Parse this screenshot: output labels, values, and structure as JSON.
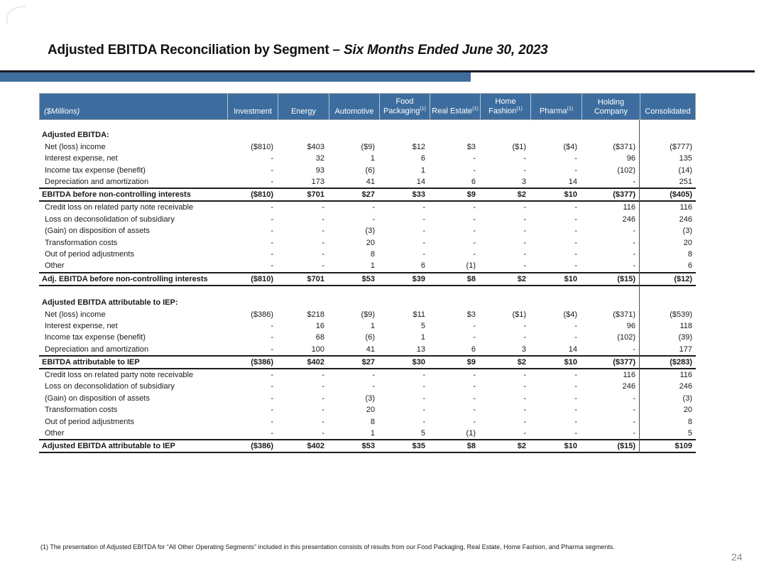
{
  "slide": {
    "title_main": "Adjusted EBITDA Reconciliation by Segment – ",
    "title_italic": "Six Months Ended June 30, 2023",
    "footnote": "(1) The presentation of Adjusted EBITDA for “All Other Operating Segments” included in this presentation consists of results from our Food Packaging, Real Estate, Home Fashion, and Pharma segments.",
    "page_number": "24"
  },
  "colors": {
    "header_blue": "#3D6D9E",
    "accent_bar": "#3E6D9E",
    "rule_dark": "#1A1A24",
    "page_number": "#8A8A8A"
  },
  "table": {
    "unit_label": "($Millions)",
    "columns": [
      {
        "label": "Investment",
        "sup": ""
      },
      {
        "label": "Energy",
        "sup": ""
      },
      {
        "label": "Automotive",
        "sup": ""
      },
      {
        "label": "Food Packaging",
        "sup": "(1)"
      },
      {
        "label": "Real Estate",
        "sup": "(1)"
      },
      {
        "label": "Home Fashion",
        "sup": "(1)"
      },
      {
        "label": "Pharma",
        "sup": "(1)"
      },
      {
        "label": "Holding Company",
        "sup": ""
      },
      {
        "label": "Consolidated",
        "sup": ""
      }
    ],
    "sections": [
      {
        "header": "Adjusted EBITDA:",
        "rows": [
          {
            "label": "Net (loss) income",
            "style": "normal",
            "values": [
              "($810)",
              "$403",
              "($9)",
              "$12",
              "$3",
              "($1)",
              "($4)",
              "($371)",
              "($777)"
            ]
          },
          {
            "label": "Interest expense, net",
            "style": "normal",
            "values": [
              "-",
              "32",
              "1",
              "6",
              "-",
              "-",
              "-",
              "96",
              "135"
            ]
          },
          {
            "label": "Income tax expense (benefit)",
            "style": "normal",
            "values": [
              "-",
              "93",
              "(6)",
              "1",
              "-",
              "-",
              "-",
              "(102)",
              "(14)"
            ]
          },
          {
            "label": "Depreciation and amortization",
            "style": "normal",
            "values": [
              "-",
              "173",
              "41",
              "14",
              "6",
              "3",
              "14",
              "-",
              "251"
            ]
          },
          {
            "label": "EBITDA before non-controlling interests",
            "style": "total",
            "values": [
              "($810)",
              "$701",
              "$27",
              "$33",
              "$9",
              "$2",
              "$10",
              "($377)",
              "($405)"
            ]
          },
          {
            "label": "Credit loss on related party note receivable",
            "style": "normal",
            "values": [
              "-",
              "-",
              "-",
              "-",
              "-",
              "-",
              "-",
              "116",
              "116"
            ]
          },
          {
            "label": "Loss on deconsolidation of subsidiary",
            "style": "normal",
            "values": [
              "-",
              "-",
              "-",
              "-",
              "-",
              "-",
              "-",
              "246",
              "246"
            ]
          },
          {
            "label": "(Gain) on disposition of assets",
            "style": "normal",
            "values": [
              "-",
              "-",
              "(3)",
              "-",
              "-",
              "-",
              "-",
              "-",
              "(3)"
            ]
          },
          {
            "label": "Transformation costs",
            "style": "normal",
            "values": [
              "-",
              "-",
              "20",
              "-",
              "-",
              "-",
              "-",
              "-",
              "20"
            ]
          },
          {
            "label": "Out of period adjustments",
            "style": "normal",
            "values": [
              "-",
              "-",
              "8",
              "-",
              "-",
              "-",
              "-",
              "-",
              "8"
            ]
          },
          {
            "label": "Other",
            "style": "normal",
            "values": [
              "-",
              "-",
              "1",
              "6",
              "(1)",
              "-",
              "-",
              "-",
              "6"
            ]
          },
          {
            "label": "Adj. EBITDA before non-controlling interests",
            "style": "total",
            "values": [
              "($810)",
              "$701",
              "$53",
              "$39",
              "$8",
              "$2",
              "$10",
              "($15)",
              "($12)"
            ]
          }
        ]
      },
      {
        "header": "Adjusted EBITDA attributable to IEP:",
        "rows": [
          {
            "label": "Net (loss) income",
            "style": "normal",
            "values": [
              "($386)",
              "$218",
              "($9)",
              "$11",
              "$3",
              "($1)",
              "($4)",
              "($371)",
              "($539)"
            ]
          },
          {
            "label": "Interest expense, net",
            "style": "normal",
            "values": [
              "-",
              "16",
              "1",
              "5",
              "-",
              "-",
              "-",
              "96",
              "118"
            ]
          },
          {
            "label": "Income tax expense (benefit)",
            "style": "normal",
            "values": [
              "-",
              "68",
              "(6)",
              "1",
              "-",
              "-",
              "-",
              "(102)",
              "(39)"
            ]
          },
          {
            "label": "Depreciation and amortization",
            "style": "normal",
            "values": [
              "-",
              "100",
              "41",
              "13",
              "6",
              "3",
              "14",
              "-",
              "177"
            ]
          },
          {
            "label": "EBITDA attributable to IEP",
            "style": "total",
            "values": [
              "($386)",
              "$402",
              "$27",
              "$30",
              "$9",
              "$2",
              "$10",
              "($377)",
              "($283)"
            ]
          },
          {
            "label": "Credit loss on related party note receivable",
            "style": "normal",
            "values": [
              "-",
              "-",
              "-",
              "-",
              "-",
              "-",
              "-",
              "116",
              "116"
            ]
          },
          {
            "label": "Loss on deconsolidation of subsidiary",
            "style": "normal",
            "values": [
              "-",
              "-",
              "-",
              "-",
              "-",
              "-",
              "-",
              "246",
              "246"
            ]
          },
          {
            "label": "(Gain) on disposition of assets",
            "style": "normal",
            "values": [
              "-",
              "-",
              "(3)",
              "-",
              "-",
              "-",
              "-",
              "-",
              "(3)"
            ]
          },
          {
            "label": "Transformation costs",
            "style": "normal",
            "values": [
              "-",
              "-",
              "20",
              "-",
              "-",
              "-",
              "-",
              "-",
              "20"
            ]
          },
          {
            "label": "Out of period adjustments",
            "style": "normal",
            "values": [
              "-",
              "-",
              "8",
              "-",
              "-",
              "-",
              "-",
              "-",
              "8"
            ]
          },
          {
            "label": "Other",
            "style": "normal",
            "values": [
              "-",
              "-",
              "1",
              "5",
              "(1)",
              "-",
              "-",
              "-",
              "5"
            ]
          },
          {
            "label": "Adjusted EBITDA attributable to IEP",
            "style": "total",
            "values": [
              "($386)",
              "$402",
              "$53",
              "$35",
              "$8",
              "$2",
              "$10",
              "($15)",
              "$109"
            ]
          }
        ]
      }
    ]
  }
}
